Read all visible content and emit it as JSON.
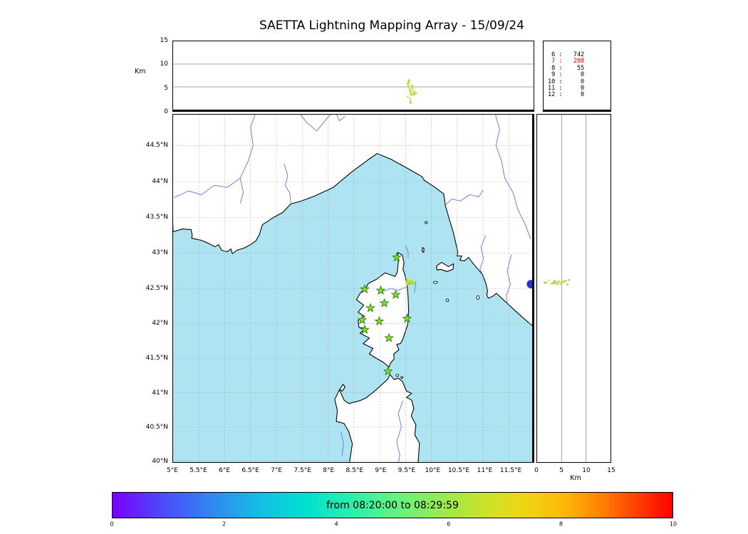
{
  "title": "SAETTA Lightning Mapping Array - 15/09/24",
  "colors": {
    "sea": "#aee4f1",
    "land": "#ffffff",
    "coast": "#000000",
    "river": "#6b6bd4",
    "grid": "#999999",
    "station_fill": "#85e02e",
    "station_edge": "#2e7d00",
    "lake": "#2233cc",
    "stats_highlight": "#d40000",
    "streak": "#5f6fa8"
  },
  "top_panel": {
    "ylabel": "Km",
    "yticks": [
      "0",
      "5",
      "10",
      "15"
    ]
  },
  "right_panel": {
    "xlabel": "Km",
    "xticks": [
      "0",
      "5",
      "10",
      "15"
    ]
  },
  "stats_panel": {
    "lines": [
      {
        "text": " 6 :   742",
        "red": false
      },
      {
        "text": " 7 :   288",
        "red": true
      },
      {
        "text": " 8 :    55",
        "red": false
      },
      {
        "text": " 9 :     0",
        "red": false
      },
      {
        "text": "10 :     0",
        "red": false
      },
      {
        "text": "11 :     0",
        "red": false
      },
      {
        "text": "12 :     0",
        "red": false
      }
    ]
  },
  "map_panel": {
    "lat_ticks": [
      "44.5°N",
      "44°N",
      "43.5°N",
      "43°N",
      "42.5°N",
      "42°N",
      "41.5°N",
      "41°N",
      "40.5°N",
      "40°N"
    ],
    "lon_ticks": [
      "5°E",
      "5.5°E",
      "6°E",
      "6.5°E",
      "7°E",
      "7.5°E",
      "8°E",
      "8.5°E",
      "9°E",
      "9.5°E",
      "10°E",
      "10.5°E",
      "11°E",
      "11.5°E"
    ]
  },
  "colorbar": {
    "label": "from 08:20:00 to 08:29:59",
    "ticks": [
      "0",
      "2",
      "4",
      "6",
      "8",
      "10"
    ],
    "gradient": [
      "#7a00fe 0%",
      "#4b4bfa 9%",
      "#2f8af0 18%",
      "#12c2e3 27%",
      "#00e3cd 35%",
      "#2eefab 43%",
      "#66f37d 51%",
      "#99ea4e 59%",
      "#c6e32b 66%",
      "#ecd713 73%",
      "#ffb608 81%",
      "#ff7a03 88%",
      "#ff3c01 94%",
      "#fe0000 100%"
    ]
  },
  "chart_data": {
    "type": "scatter",
    "title": "SAETTA Lightning Mapping Array - 15/09/24",
    "date": "15/09/24",
    "time_range": {
      "from": "08:20:00",
      "to": "08:29:59"
    },
    "colorbar_minutes_range": [
      0,
      10
    ],
    "map_extent": {
      "lon": [
        5.0,
        11.95
      ],
      "lat": [
        40.0,
        44.93
      ]
    },
    "altitude_km_range": [
      0,
      15
    ],
    "lat_tick_values": [
      44.5,
      44,
      43.5,
      43,
      42.5,
      42,
      41.5,
      41,
      40.5,
      40
    ],
    "lon_tick_values": [
      5,
      5.5,
      6,
      6.5,
      7,
      7.5,
      8,
      8.5,
      9,
      9.5,
      10,
      10.5,
      11,
      11.5
    ],
    "alt_tick_values": [
      0,
      5,
      10,
      15
    ],
    "colorbar_tick_values": [
      0,
      2,
      4,
      6,
      8,
      10
    ],
    "sources_by_num_stations": {
      "6": 742,
      "7": 288,
      "8": 55,
      "9": 0,
      "10": 0,
      "11": 0,
      "12": 0
    },
    "stations_lon_lat": [
      [
        9.33,
        42.94
      ],
      [
        8.71,
        42.49
      ],
      [
        9.02,
        42.47
      ],
      [
        9.31,
        42.41
      ],
      [
        8.82,
        42.22
      ],
      [
        9.09,
        42.29
      ],
      [
        8.66,
        42.05
      ],
      [
        8.99,
        42.03
      ],
      [
        9.53,
        42.07
      ],
      [
        8.71,
        41.91
      ],
      [
        9.18,
        41.79
      ],
      [
        9.16,
        41.31
      ]
    ],
    "flash_cluster": {
      "lon": [
        9.52,
        9.69
      ],
      "lat": [
        42.55,
        42.62
      ],
      "alt_km": [
        1.5,
        6.5
      ]
    },
    "flash_points_lon_lat_altkm": [
      [
        9.525,
        42.6,
        5.7
      ],
      [
        9.535,
        42.585,
        5.2
      ],
      [
        9.545,
        42.61,
        5.9
      ],
      [
        9.555,
        42.575,
        4.9
      ],
      [
        9.565,
        42.6,
        4.5
      ],
      [
        9.57,
        42.565,
        4.1
      ],
      [
        9.58,
        42.59,
        3.8
      ],
      [
        9.59,
        42.605,
        3.5
      ],
      [
        9.595,
        42.575,
        3.2
      ],
      [
        9.605,
        42.595,
        5.3
      ],
      [
        9.615,
        42.565,
        4.7
      ],
      [
        9.625,
        42.585,
        4.2
      ],
      [
        9.635,
        42.6,
        3.7
      ],
      [
        9.645,
        42.57,
        3.3
      ],
      [
        9.66,
        42.59,
        3.9
      ],
      [
        9.68,
        42.58,
        3.6
      ],
      [
        9.54,
        42.555,
        6.2
      ],
      [
        9.55,
        42.62,
        6.5
      ],
      [
        9.525,
        42.57,
        2.9
      ],
      [
        9.57,
        42.615,
        2.4
      ],
      [
        9.575,
        42.585,
        1.9
      ],
      [
        9.58,
        42.58,
        1.5
      ]
    ],
    "flash_palette": [
      "#9edc33",
      "#aede2e",
      "#bfe23a",
      "#cbdf4e",
      "#b7d94a",
      "#90d22b",
      "#d2df5a",
      "#a3d833"
    ]
  }
}
